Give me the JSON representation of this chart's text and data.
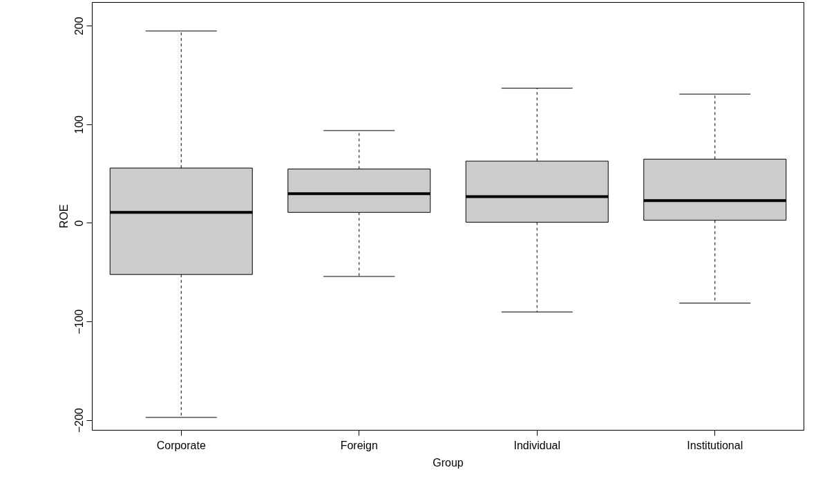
{
  "chart_data": {
    "type": "box",
    "xlabel": "Group",
    "ylabel": "ROE",
    "categories": [
      "Corporate",
      "Foreign",
      "Individual",
      "Institutional"
    ],
    "boxes": [
      {
        "low": -197,
        "q1": -52,
        "median": 11,
        "q3": 56,
        "high": 195
      },
      {
        "low": -54,
        "q1": 11,
        "median": 30,
        "q3": 55,
        "high": 94
      },
      {
        "low": -90,
        "q1": 1,
        "median": 27,
        "q3": 63,
        "high": 137
      },
      {
        "low": -81,
        "q1": 3,
        "median": 23,
        "q3": 65,
        "high": 131
      }
    ],
    "color": "#cccccc",
    "ylim": [
      -210,
      224
    ],
    "yticks": [
      -200,
      -100,
      0,
      100,
      200
    ],
    "grid": false
  }
}
